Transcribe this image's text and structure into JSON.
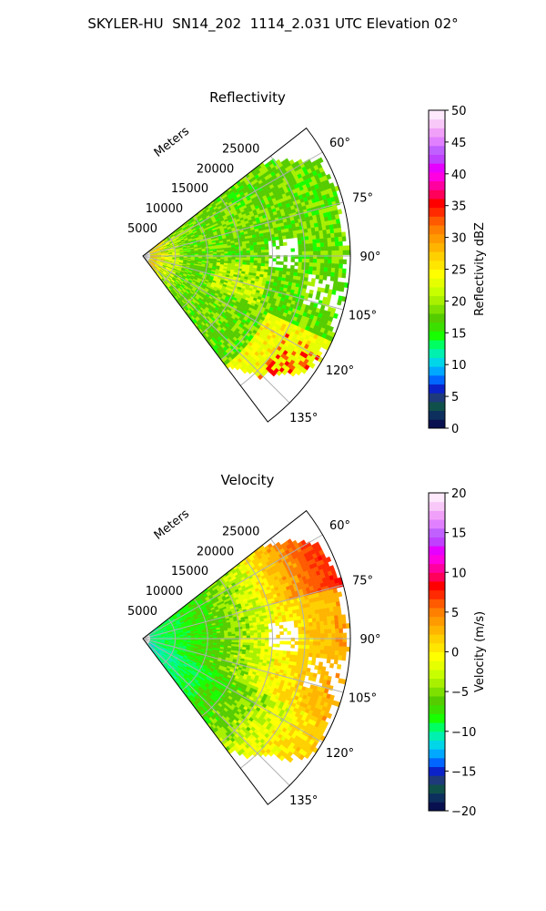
{
  "suptitle": "SKYLER-HU  SN14_202  1114_2.031 UTC Elevation 02°",
  "chart_data": [
    {
      "type": "heatmap",
      "projection": "polar-sector",
      "title": "Reflectivity",
      "radial_label": "Meters",
      "radial_ticks": [
        5000,
        10000,
        15000,
        20000,
        25000
      ],
      "radial_tick_labels": [
        "5000",
        "10000",
        "15000",
        "20000",
        "25000"
      ],
      "rmax": 32000,
      "azimuth_range": [
        52,
        143
      ],
      "azimuth_ticks": [
        60,
        75,
        90,
        105,
        120,
        135
      ],
      "azimuth_tick_labels": [
        "60°",
        "75°",
        "90°",
        "105°",
        "120°",
        "135°"
      ],
      "grid": true,
      "colorbar": {
        "label": "Reflectivity dBZ",
        "range": [
          0,
          50
        ],
        "ticks": [
          0,
          5,
          10,
          15,
          20,
          25,
          30,
          35,
          40,
          45,
          50
        ],
        "tick_labels": [
          "0",
          "5",
          "10",
          "15",
          "20",
          "25",
          "30",
          "35",
          "40",
          "45",
          "50"
        ],
        "colors": [
          "#08104f",
          "#0c2f5e",
          "#10504a",
          "#1f3a7a",
          "#0a22c8",
          "#0066ff",
          "#00a8ff",
          "#00d6e8",
          "#00f0b0",
          "#00ff60",
          "#18ff00",
          "#3ce000",
          "#55cc00",
          "#7ee000",
          "#a8f000",
          "#c8ff00",
          "#e6ff00",
          "#ffff00",
          "#ffe600",
          "#ffd000",
          "#ffb400",
          "#ff9a00",
          "#ff8000",
          "#ff5a00",
          "#ff2a00",
          "#ff0000",
          "#ff005a",
          "#ff00a0",
          "#ff00e0",
          "#e600ff",
          "#c040ff",
          "#c060ff",
          "#e080ff",
          "#f0a0f8",
          "#f8c8f8",
          "#fde8fc"
        ]
      }
    },
    {
      "type": "heatmap",
      "projection": "polar-sector",
      "title": "Velocity",
      "radial_label": "Meters",
      "radial_ticks": [
        5000,
        10000,
        15000,
        20000,
        25000
      ],
      "radial_tick_labels": [
        "5000",
        "10000",
        "15000",
        "20000",
        "25000"
      ],
      "rmax": 32000,
      "azimuth_range": [
        52,
        143
      ],
      "azimuth_ticks": [
        60,
        75,
        90,
        105,
        120,
        135
      ],
      "azimuth_tick_labels": [
        "60°",
        "75°",
        "90°",
        "105°",
        "120°",
        "135°"
      ],
      "grid": true,
      "colorbar": {
        "label": "Velocity (m/s)",
        "range": [
          -20,
          20
        ],
        "ticks": [
          -20,
          -15,
          -10,
          -5,
          0,
          5,
          10,
          15,
          20
        ],
        "tick_labels": [
          "−20",
          "−15",
          "−10",
          "−5",
          "0",
          "5",
          "10",
          "15",
          "20"
        ],
        "colors": [
          "#08104f",
          "#0c2f5e",
          "#10504a",
          "#1f3a7a",
          "#0a22c8",
          "#0066ff",
          "#00a8ff",
          "#00d6e8",
          "#00f0b0",
          "#00ff60",
          "#18ff00",
          "#3ce000",
          "#55cc00",
          "#7ee000",
          "#a8f000",
          "#c8ff00",
          "#e6ff00",
          "#ffff00",
          "#ffe600",
          "#ffd000",
          "#ffb400",
          "#ff9a00",
          "#ff8000",
          "#ff5a00",
          "#ff2a00",
          "#ff0000",
          "#ff005a",
          "#ff00a0",
          "#ff00e0",
          "#e600ff",
          "#c040ff",
          "#c060ff",
          "#e080ff",
          "#f0a0f8",
          "#f8c8f8",
          "#fde8fc"
        ]
      }
    }
  ]
}
